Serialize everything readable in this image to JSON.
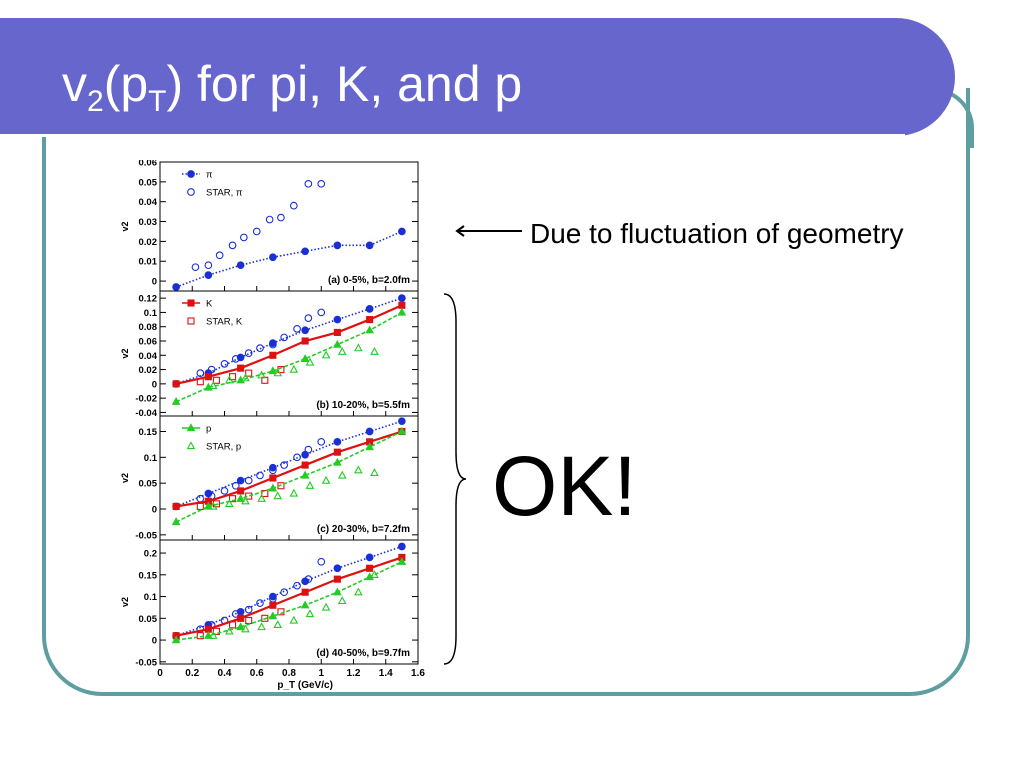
{
  "slide": {
    "title_main": "v",
    "title_sub1": "2",
    "title_mid": "(p",
    "title_sub2": "T",
    "title_rest": ") for pi, K, and p",
    "note": "Due to fluctuation of geometry",
    "ok": "OK!",
    "colors": {
      "title_bar": "#6666cc",
      "frame": "#5f9ea0",
      "pi": "#1a2fd6",
      "K": "#dd1111",
      "p": "#22cc22"
    }
  },
  "chart_data": {
    "type": "scatter",
    "xlabel": "p_T (GeV/c)",
    "xlim": [
      0,
      1.6
    ],
    "xticks": [
      0,
      0.2,
      0.4,
      0.6,
      0.8,
      1,
      1.2,
      1.4,
      1.6
    ],
    "panels": [
      {
        "panel": "(a) 0-5%, b=2.0fm",
        "ylabel": "v2",
        "ylim": [
          -0.005,
          0.06
        ],
        "yticks": [
          "0.06",
          "0.05",
          "0.04",
          "0.03",
          "0.02",
          "0.01",
          "0"
        ],
        "legend": [
          {
            "label": "π",
            "style": "filled-circle-dotted",
            "color": "#1a2fd6"
          },
          {
            "label": "STAR, π",
            "style": "open-circle",
            "color": "#1a2fd6"
          }
        ],
        "series": [
          {
            "name": "π",
            "style": "filled-circle-dotted",
            "color": "#1a2fd6",
            "x": [
              0.1,
              0.3,
              0.5,
              0.7,
              0.9,
              1.1,
              1.3,
              1.5
            ],
            "y": [
              -0.003,
              0.003,
              0.008,
              0.012,
              0.015,
              0.018,
              0.018,
              0.025
            ]
          },
          {
            "name": "STAR, π",
            "style": "open-circle",
            "color": "#1a2fd6",
            "x": [
              0.22,
              0.3,
              0.37,
              0.45,
              0.52,
              0.6,
              0.68,
              0.75,
              0.83,
              0.92,
              1.0
            ],
            "y": [
              0.007,
              0.008,
              0.013,
              0.018,
              0.022,
              0.025,
              0.031,
              0.032,
              0.038,
              0.049,
              0.049
            ]
          }
        ]
      },
      {
        "panel": "(b) 10-20%, b=5.5fm",
        "ylabel": "v2",
        "ylim": [
          -0.045,
          0.13
        ],
        "yticks": [
          "0.12",
          "0.1",
          "0.08",
          "0.06",
          "0.04",
          "0.02",
          "0",
          "-0.02",
          "-0.04"
        ],
        "legend": [
          {
            "label": "K",
            "style": "filled-square-line",
            "color": "#dd1111"
          },
          {
            "label": "STAR, K",
            "style": "open-square",
            "color": "#dd1111"
          }
        ],
        "series": [
          {
            "name": "π",
            "style": "filled-circle-dotted",
            "color": "#1a2fd6",
            "x": [
              0.1,
              0.3,
              0.5,
              0.7,
              0.9,
              1.1,
              1.3,
              1.5
            ],
            "y": [
              0.0,
              0.015,
              0.037,
              0.057,
              0.075,
              0.09,
              0.105,
              0.12
            ]
          },
          {
            "name": "STAR, π",
            "style": "open-circle",
            "color": "#1a2fd6",
            "x": [
              0.25,
              0.32,
              0.4,
              0.47,
              0.55,
              0.62,
              0.7,
              0.77,
              0.85,
              0.92,
              1.0
            ],
            "y": [
              0.015,
              0.02,
              0.028,
              0.035,
              0.043,
              0.05,
              0.055,
              0.065,
              0.077,
              0.092,
              0.1
            ]
          },
          {
            "name": "K",
            "style": "filled-square-line",
            "color": "#dd1111",
            "x": [
              0.1,
              0.3,
              0.5,
              0.7,
              0.9,
              1.1,
              1.3,
              1.5
            ],
            "y": [
              0.0,
              0.01,
              0.022,
              0.04,
              0.06,
              0.072,
              0.09,
              0.11
            ]
          },
          {
            "name": "STAR, K",
            "style": "open-square",
            "color": "#dd1111",
            "x": [
              0.25,
              0.35,
              0.45,
              0.55,
              0.65,
              0.75
            ],
            "y": [
              0.003,
              0.005,
              0.01,
              0.015,
              0.005,
              0.02
            ]
          },
          {
            "name": "p",
            "style": "filled-triangle-dashed",
            "color": "#22cc22",
            "x": [
              0.1,
              0.3,
              0.5,
              0.7,
              0.9,
              1.1,
              1.3,
              1.5
            ],
            "y": [
              -0.025,
              -0.005,
              0.005,
              0.018,
              0.035,
              0.055,
              0.075,
              0.1
            ]
          },
          {
            "name": "STAR, p",
            "style": "open-triangle",
            "color": "#22cc22",
            "x": [
              0.33,
              0.43,
              0.53,
              0.63,
              0.73,
              0.83,
              0.93,
              1.03,
              1.13,
              1.23,
              1.33
            ],
            "y": [
              -0.003,
              0.005,
              0.008,
              0.012,
              0.015,
              0.02,
              0.03,
              0.04,
              0.045,
              0.05,
              0.045
            ]
          }
        ]
      },
      {
        "panel": "(c) 20-30%, b=7.2fm",
        "ylabel": "v2",
        "ylim": [
          -0.06,
          0.18
        ],
        "yticks": [
          "0.15",
          "0.1",
          "0.05",
          "0",
          "-0.05"
        ],
        "legend": [
          {
            "label": "p",
            "style": "filled-triangle-dashed",
            "color": "#22cc22"
          },
          {
            "label": "STAR, p",
            "style": "open-triangle",
            "color": "#22cc22"
          }
        ],
        "series": [
          {
            "name": "π",
            "style": "filled-circle-dotted",
            "color": "#1a2fd6",
            "x": [
              0.1,
              0.3,
              0.5,
              0.7,
              0.9,
              1.1,
              1.3,
              1.5
            ],
            "y": [
              0.005,
              0.03,
              0.055,
              0.08,
              0.105,
              0.13,
              0.15,
              0.17
            ]
          },
          {
            "name": "STAR, π",
            "style": "open-circle",
            "color": "#1a2fd6",
            "x": [
              0.25,
              0.32,
              0.4,
              0.47,
              0.55,
              0.62,
              0.7,
              0.77,
              0.85,
              0.92,
              1.0
            ],
            "y": [
              0.02,
              0.025,
              0.035,
              0.045,
              0.055,
              0.065,
              0.075,
              0.085,
              0.1,
              0.115,
              0.13
            ]
          },
          {
            "name": "K",
            "style": "filled-square-line",
            "color": "#dd1111",
            "x": [
              0.1,
              0.3,
              0.5,
              0.7,
              0.9,
              1.1,
              1.3,
              1.5
            ],
            "y": [
              0.005,
              0.015,
              0.035,
              0.06,
              0.085,
              0.11,
              0.13,
              0.15
            ]
          },
          {
            "name": "STAR, K",
            "style": "open-square",
            "color": "#dd1111",
            "x": [
              0.25,
              0.35,
              0.45,
              0.55,
              0.65,
              0.75
            ],
            "y": [
              0.005,
              0.01,
              0.02,
              0.025,
              0.03,
              0.045
            ]
          },
          {
            "name": "p",
            "style": "filled-triangle-dashed",
            "color": "#22cc22",
            "x": [
              0.1,
              0.3,
              0.5,
              0.7,
              0.9,
              1.1,
              1.3,
              1.5
            ],
            "y": [
              -0.025,
              0.005,
              0.02,
              0.04,
              0.065,
              0.09,
              0.12,
              0.15
            ]
          },
          {
            "name": "STAR, p",
            "style": "open-triangle",
            "color": "#22cc22",
            "x": [
              0.33,
              0.43,
              0.53,
              0.63,
              0.73,
              0.83,
              0.93,
              1.03,
              1.13,
              1.23,
              1.33
            ],
            "y": [
              0.005,
              0.01,
              0.015,
              0.02,
              0.025,
              0.03,
              0.045,
              0.055,
              0.065,
              0.075,
              0.07
            ]
          }
        ]
      },
      {
        "panel": "(d) 40-50%, b=9.7fm",
        "ylabel": "v2",
        "ylim": [
          -0.055,
          0.23
        ],
        "yticks": [
          "0.2",
          "0.15",
          "0.1",
          "0.05",
          "0",
          "-0.05"
        ],
        "legend": [],
        "series": [
          {
            "name": "π",
            "style": "filled-circle-dotted",
            "color": "#1a2fd6",
            "x": [
              0.1,
              0.3,
              0.5,
              0.7,
              0.9,
              1.1,
              1.3,
              1.5
            ],
            "y": [
              0.01,
              0.035,
              0.065,
              0.1,
              0.135,
              0.165,
              0.19,
              0.215
            ]
          },
          {
            "name": "STAR, π",
            "style": "open-circle",
            "color": "#1a2fd6",
            "x": [
              0.25,
              0.32,
              0.4,
              0.47,
              0.55,
              0.62,
              0.7,
              0.77,
              0.85,
              0.92,
              1.0
            ],
            "y": [
              0.025,
              0.035,
              0.045,
              0.06,
              0.07,
              0.085,
              0.095,
              0.11,
              0.125,
              0.14,
              0.18
            ]
          },
          {
            "name": "K",
            "style": "filled-square-line",
            "color": "#dd1111",
            "x": [
              0.1,
              0.3,
              0.5,
              0.7,
              0.9,
              1.1,
              1.3,
              1.5
            ],
            "y": [
              0.01,
              0.025,
              0.05,
              0.08,
              0.11,
              0.14,
              0.165,
              0.19
            ]
          },
          {
            "name": "STAR, K",
            "style": "open-square",
            "color": "#dd1111",
            "x": [
              0.25,
              0.35,
              0.45,
              0.55,
              0.65,
              0.75
            ],
            "y": [
              0.01,
              0.02,
              0.035,
              0.045,
              0.05,
              0.065
            ]
          },
          {
            "name": "p",
            "style": "filled-triangle-dashed",
            "color": "#22cc22",
            "x": [
              0.1,
              0.3,
              0.5,
              0.7,
              0.9,
              1.1,
              1.3,
              1.5
            ],
            "y": [
              0.0,
              0.01,
              0.03,
              0.055,
              0.08,
              0.11,
              0.145,
              0.18
            ]
          },
          {
            "name": "STAR, p",
            "style": "open-triangle",
            "color": "#22cc22",
            "x": [
              0.33,
              0.43,
              0.53,
              0.63,
              0.73,
              0.83,
              0.93,
              1.03,
              1.13,
              1.23,
              1.33
            ],
            "y": [
              0.01,
              0.02,
              0.025,
              0.03,
              0.035,
              0.045,
              0.06,
              0.075,
              0.09,
              0.11,
              0.15
            ]
          }
        ]
      }
    ]
  }
}
